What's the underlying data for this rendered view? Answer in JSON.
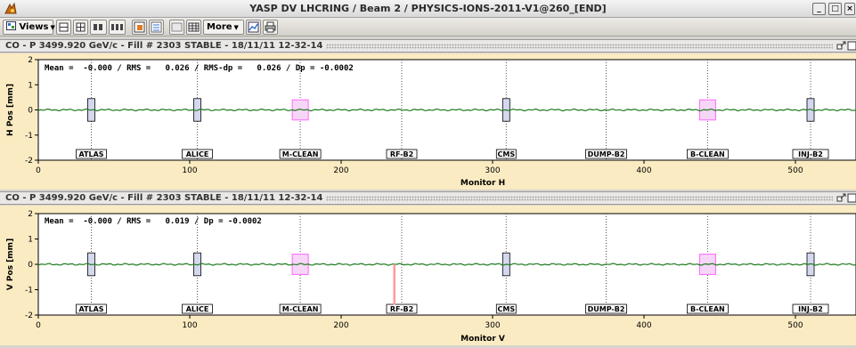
{
  "window": {
    "title": "YASP DV LHCRING / Beam 2 / PHYSICS-IONS-2011-V1@260_[END]",
    "buttons": {
      "minimize": "_",
      "maximize": "□",
      "close": "×"
    }
  },
  "toolbar": {
    "views_label": "Views",
    "more_label": "More",
    "icons": [
      "views-icon",
      "layout-icon",
      "grid-small-icon",
      "grid-large-icon",
      "settings-icon",
      "list-icon",
      "empty-icon",
      "table-icon",
      "more-icon",
      "chart-icon",
      "print-icon"
    ]
  },
  "panels": [
    {
      "header": "CO - P 3499.920 GeV/c - Fill # 2303 STABLE - 18/11/11 12-32-14",
      "stats": "Mean =  -0.000 / RMS =   0.026 / RMS-dp =   0.026 / Dp = -0.0002",
      "ylabel": "H Pos [mm]",
      "xlabel": "Monitor H"
    },
    {
      "header": "CO - P 3499.920 GeV/c - Fill # 2303 STABLE - 18/11/11 12-32-14",
      "stats": "Mean =  -0.000 / RMS =   0.019 / Dp = -0.0002",
      "ylabel": "V Pos [mm]",
      "xlabel": "Monitor V"
    }
  ],
  "chart_data": [
    {
      "type": "line",
      "title": "",
      "xlabel": "Monitor H",
      "ylabel": "H Pos [mm]",
      "xlim": [
        0,
        540
      ],
      "ylim": [
        -2,
        2
      ],
      "xticks": [
        0,
        100,
        200,
        300,
        400,
        500
      ],
      "yticks": [
        -2,
        -1,
        0,
        1,
        2
      ],
      "series_color": "#1e7a1e",
      "ip_markers": [
        {
          "label": "ATLAS",
          "x": 35
        },
        {
          "label": "ALICE",
          "x": 105
        },
        {
          "label": "M-CLEAN",
          "x": 173
        },
        {
          "label": "RF-B2",
          "x": 240
        },
        {
          "label": "CMS",
          "x": 309
        },
        {
          "label": "DUMP-B2",
          "x": 375
        },
        {
          "label": "B-CLEAN",
          "x": 442
        },
        {
          "label": "INJ-B2",
          "x": 510
        }
      ],
      "boxed_markers": [
        35,
        105,
        173,
        309,
        442,
        510
      ],
      "highlight_markers": [
        173,
        442
      ],
      "spikes": []
    },
    {
      "type": "line",
      "title": "",
      "xlabel": "Monitor V",
      "ylabel": "V Pos [mm]",
      "xlim": [
        0,
        540
      ],
      "ylim": [
        -2,
        2
      ],
      "xticks": [
        0,
        100,
        200,
        300,
        400,
        500
      ],
      "yticks": [
        -2,
        -1,
        0,
        1,
        2
      ],
      "series_color": "#1e7a1e",
      "ip_markers": [
        {
          "label": "ATLAS",
          "x": 35
        },
        {
          "label": "ALICE",
          "x": 105
        },
        {
          "label": "M-CLEAN",
          "x": 173
        },
        {
          "label": "RF-B2",
          "x": 240
        },
        {
          "label": "CMS",
          "x": 309
        },
        {
          "label": "DUMP-B2",
          "x": 375
        },
        {
          "label": "B-CLEAN",
          "x": 442
        },
        {
          "label": "INJ-B2",
          "x": 510
        }
      ],
      "boxed_markers": [
        35,
        105,
        173,
        309,
        442,
        510
      ],
      "highlight_markers": [
        173,
        442
      ],
      "spikes": [
        {
          "x": 235,
          "y": -1.6,
          "color": "#ff9a9a"
        }
      ]
    }
  ],
  "colors": {
    "plot_bg": "#ffffff",
    "frame_bg": "#fbebc2",
    "box_blue": "#d4d8ee",
    "box_magenta": "#ff66ff"
  }
}
